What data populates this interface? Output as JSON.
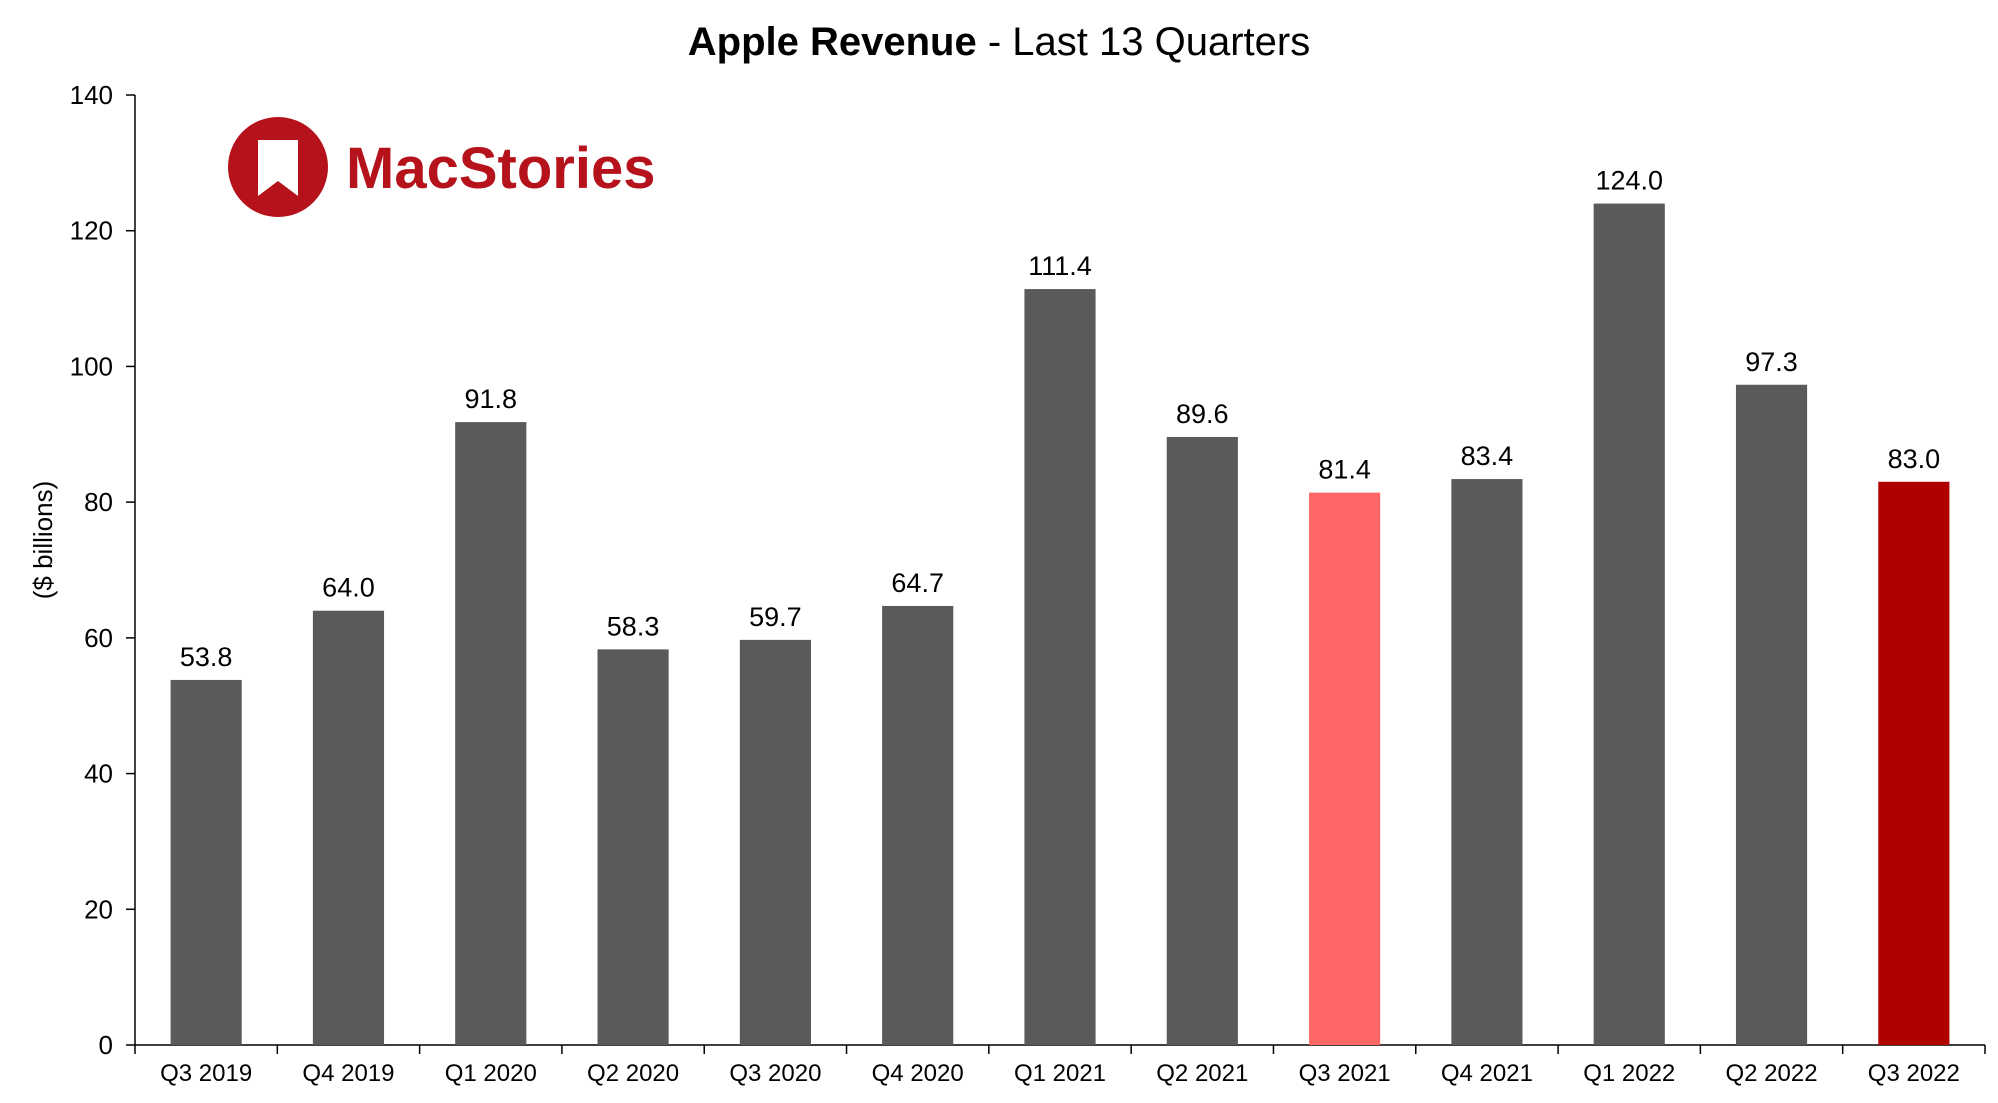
{
  "chart_data": {
    "type": "bar",
    "title": "Apple Revenue",
    "subtitle": " - Last 13 Quarters",
    "ylabel": "($ billions)",
    "xlabel": "",
    "ylim": [
      0,
      140
    ],
    "yticks": [
      0,
      20,
      40,
      60,
      80,
      100,
      120,
      140
    ],
    "grid": false,
    "legend": "none",
    "categories": [
      "Q3 2019",
      "Q4 2019",
      "Q1 2020",
      "Q2 2020",
      "Q3 2020",
      "Q4 2020",
      "Q1 2021",
      "Q2 2021",
      "Q3 2021",
      "Q4 2021",
      "Q1 2022",
      "Q2 2022",
      "Q3 2022"
    ],
    "values": [
      53.8,
      64.0,
      91.8,
      58.3,
      59.7,
      64.7,
      111.4,
      89.6,
      81.4,
      83.4,
      124.0,
      97.3,
      83.0
    ],
    "value_labels": [
      "53.8",
      "64.0",
      "91.8",
      "58.3",
      "59.7",
      "64.7",
      "111.4",
      "89.6",
      "81.4",
      "83.4",
      "124.0",
      "97.3",
      "83.0"
    ],
    "colors": {
      "default_bar": "#5a5a5a",
      "year_ago_bar": "#ff6666",
      "current_bar": "#b00000",
      "axis": "#000000",
      "text": "#000000"
    },
    "bar_colors": [
      "default_bar",
      "default_bar",
      "default_bar",
      "default_bar",
      "default_bar",
      "default_bar",
      "default_bar",
      "default_bar",
      "year_ago_bar",
      "default_bar",
      "default_bar",
      "default_bar",
      "current_bar"
    ]
  },
  "logo": {
    "text": "MacStories",
    "color": "#b5121b",
    "icon": "bookmark-icon"
  }
}
